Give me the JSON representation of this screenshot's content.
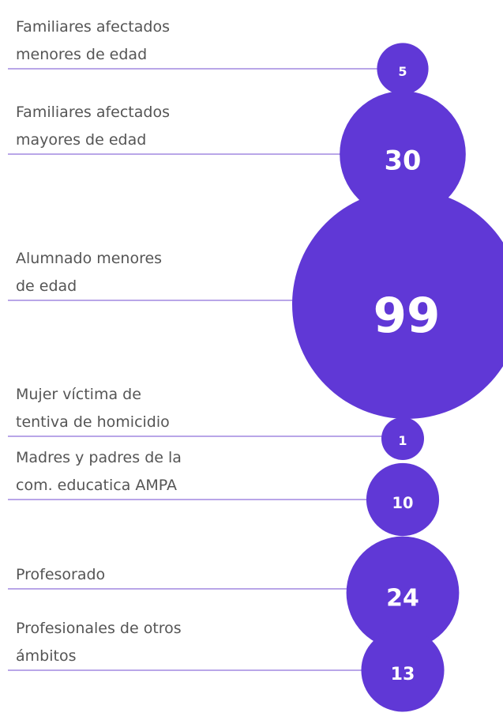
{
  "chart_data": {
    "type": "bubble",
    "categories": [
      [
        "Familiares afectados",
        "menores de edad"
      ],
      [
        "Familiares afectados",
        "mayores de edad"
      ],
      [
        "Alumnado menores",
        "de edad"
      ],
      [
        "Mujer víctima de",
        "tentiva de homicidio"
      ],
      [
        "Madres y padres de la",
        "com. educatica AMPA"
      ],
      [
        "Profesorado"
      ],
      [
        "Profesionales de otros",
        "ámbitos"
      ]
    ],
    "values": [
      5,
      30,
      99,
      1,
      10,
      24,
      13
    ],
    "color": "#6038d6",
    "line_color": "#b9a6e8"
  }
}
